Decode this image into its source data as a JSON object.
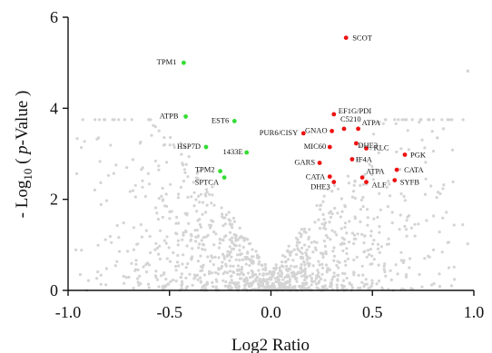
{
  "chart_data": {
    "type": "scatter",
    "title": "",
    "xlabel": "Log2 Ratio",
    "ylabel": {
      "prefix": "- Log",
      "subscript": "10",
      "open": " ( ",
      "italic": "p",
      "suffix": "-Value )"
    },
    "xlim": [
      -1.0,
      1.0
    ],
    "ylim": [
      0,
      6
    ],
    "x_ticks": [
      -1.0,
      -0.5,
      0.0,
      0.5,
      1.0
    ],
    "x_tick_labels": [
      "-1.0",
      "-0.5",
      "0.0",
      "0.5",
      "1.0"
    ],
    "y_ticks": [
      0,
      2,
      4,
      6
    ],
    "y_tick_labels": [
      "0",
      "2",
      "4",
      "6"
    ],
    "grid": false,
    "colors": {
      "down": "#33dd33",
      "up": "#ee1111",
      "background": "#d4d4d4"
    },
    "series": [
      {
        "group": "down",
        "points": [
          {
            "label": "TPM1",
            "x": -0.43,
            "y": 5.0
          },
          {
            "label": "ATPB",
            "x": -0.42,
            "y": 3.82
          },
          {
            "label": "EST6",
            "x": -0.18,
            "y": 3.72
          },
          {
            "label": "HSP7D",
            "x": -0.32,
            "y": 3.15
          },
          {
            "label": "1433E",
            "x": -0.12,
            "y": 3.03
          },
          {
            "label": "TPM2",
            "x": -0.25,
            "y": 2.62
          },
          {
            "label": "SPTCA",
            "x": -0.23,
            "y": 2.48
          }
        ]
      },
      {
        "group": "up",
        "points": [
          {
            "label": "SCOT",
            "x": 0.37,
            "y": 5.55
          },
          {
            "label": "EF1G/PDI",
            "x": 0.31,
            "y": 3.87
          },
          {
            "label": "GNAO",
            "x": 0.3,
            "y": 3.5
          },
          {
            "label": "PUR6/CISY",
            "x": 0.16,
            "y": 3.45
          },
          {
            "label": "C5210",
            "x": 0.36,
            "y": 3.55
          },
          {
            "label": "ATPA",
            "x": 0.43,
            "y": 3.55
          },
          {
            "label": "DHE3",
            "x": 0.42,
            "y": 3.23
          },
          {
            "label": "KLC",
            "x": 0.47,
            "y": 3.12
          },
          {
            "label": "MIC60",
            "x": 0.29,
            "y": 3.15
          },
          {
            "label": "PGK",
            "x": 0.66,
            "y": 2.98
          },
          {
            "label": "GARS",
            "x": 0.24,
            "y": 2.8
          },
          {
            "label": "IF4A",
            "x": 0.4,
            "y": 2.88
          },
          {
            "label": "CATA",
            "x": 0.62,
            "y": 2.65
          },
          {
            "label": "CATA",
            "x": 0.29,
            "y": 2.5
          },
          {
            "label": "ATPA",
            "x": 0.45,
            "y": 2.48
          },
          {
            "label": "SYFB",
            "x": 0.61,
            "y": 2.42
          },
          {
            "label": "DHE3",
            "x": 0.31,
            "y": 2.38
          },
          {
            "label": "ALF",
            "x": 0.47,
            "y": 2.38
          }
        ]
      },
      {
        "group": "background",
        "description_count": 1200
      }
    ]
  }
}
